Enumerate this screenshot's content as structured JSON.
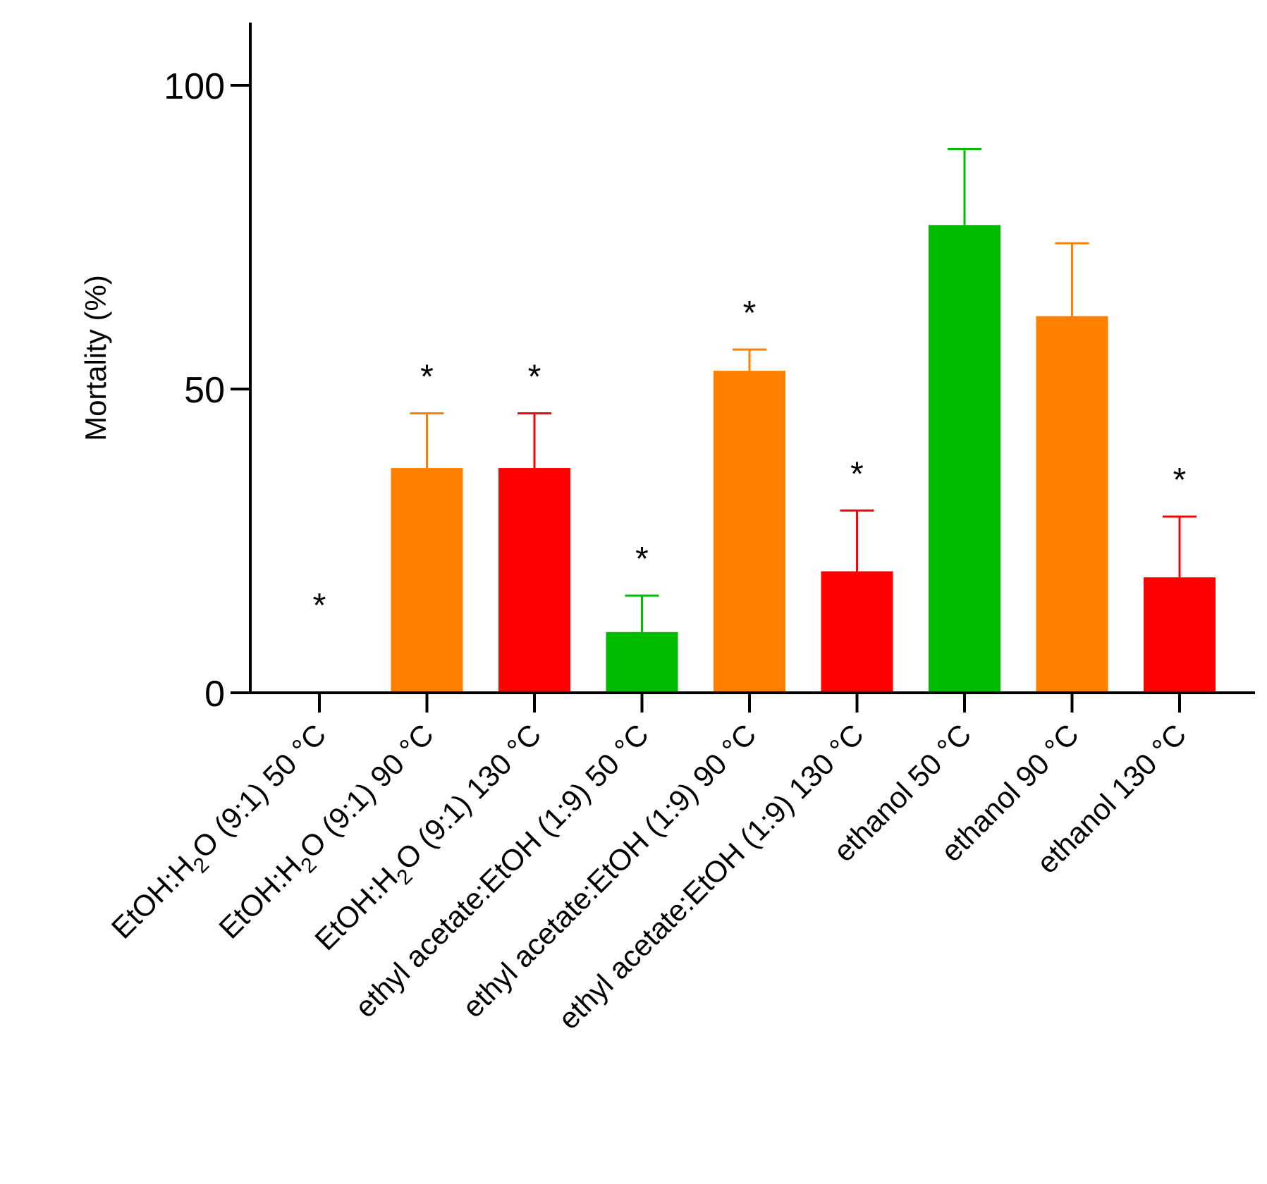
{
  "chart_data": {
    "type": "bar",
    "title": "",
    "xlabel": "",
    "ylabel": "Mortality (%)",
    "ylim": [
      0,
      110
    ],
    "yticks": [
      0,
      50,
      100
    ],
    "grid": false,
    "categories": [
      {
        "pre": "EtOH:H",
        "sub": "2",
        "post": "O (9:1) 50 °C"
      },
      {
        "pre": "EtOH:H",
        "sub": "2",
        "post": "O (9:1) 90 °C"
      },
      {
        "pre": "EtOH:H",
        "sub": "2",
        "post": "O (9:1) 130 °C"
      },
      {
        "pre": "ethyl acetate:EtOH (1:9) 50 °C",
        "sub": "",
        "post": ""
      },
      {
        "pre": "ethyl acetate:EtOH (1:9) 90 °C",
        "sub": "",
        "post": ""
      },
      {
        "pre": "ethyl acetate:EtOH (1:9) 130 °C",
        "sub": "",
        "post": ""
      },
      {
        "pre": "ethanol 50 °C",
        "sub": "",
        "post": ""
      },
      {
        "pre": "ethanol  90 °C",
        "sub": "",
        "post": ""
      },
      {
        "pre": "ethanol 130 °C",
        "sub": "",
        "post": ""
      }
    ],
    "values": [
      0,
      37,
      37,
      10,
      53,
      20,
      77,
      62,
      19
    ],
    "errors": [
      0,
      9,
      9,
      6,
      3.5,
      10,
      12.5,
      12,
      10
    ],
    "significant": [
      true,
      true,
      true,
      true,
      true,
      true,
      false,
      false,
      true
    ],
    "significance_marker": "*",
    "colors": [
      "#00bb00",
      "#ff8000",
      "#ff0000",
      "#00bb00",
      "#ff8000",
      "#ff0000",
      "#00bb00",
      "#ff8000",
      "#ff0000"
    ]
  }
}
